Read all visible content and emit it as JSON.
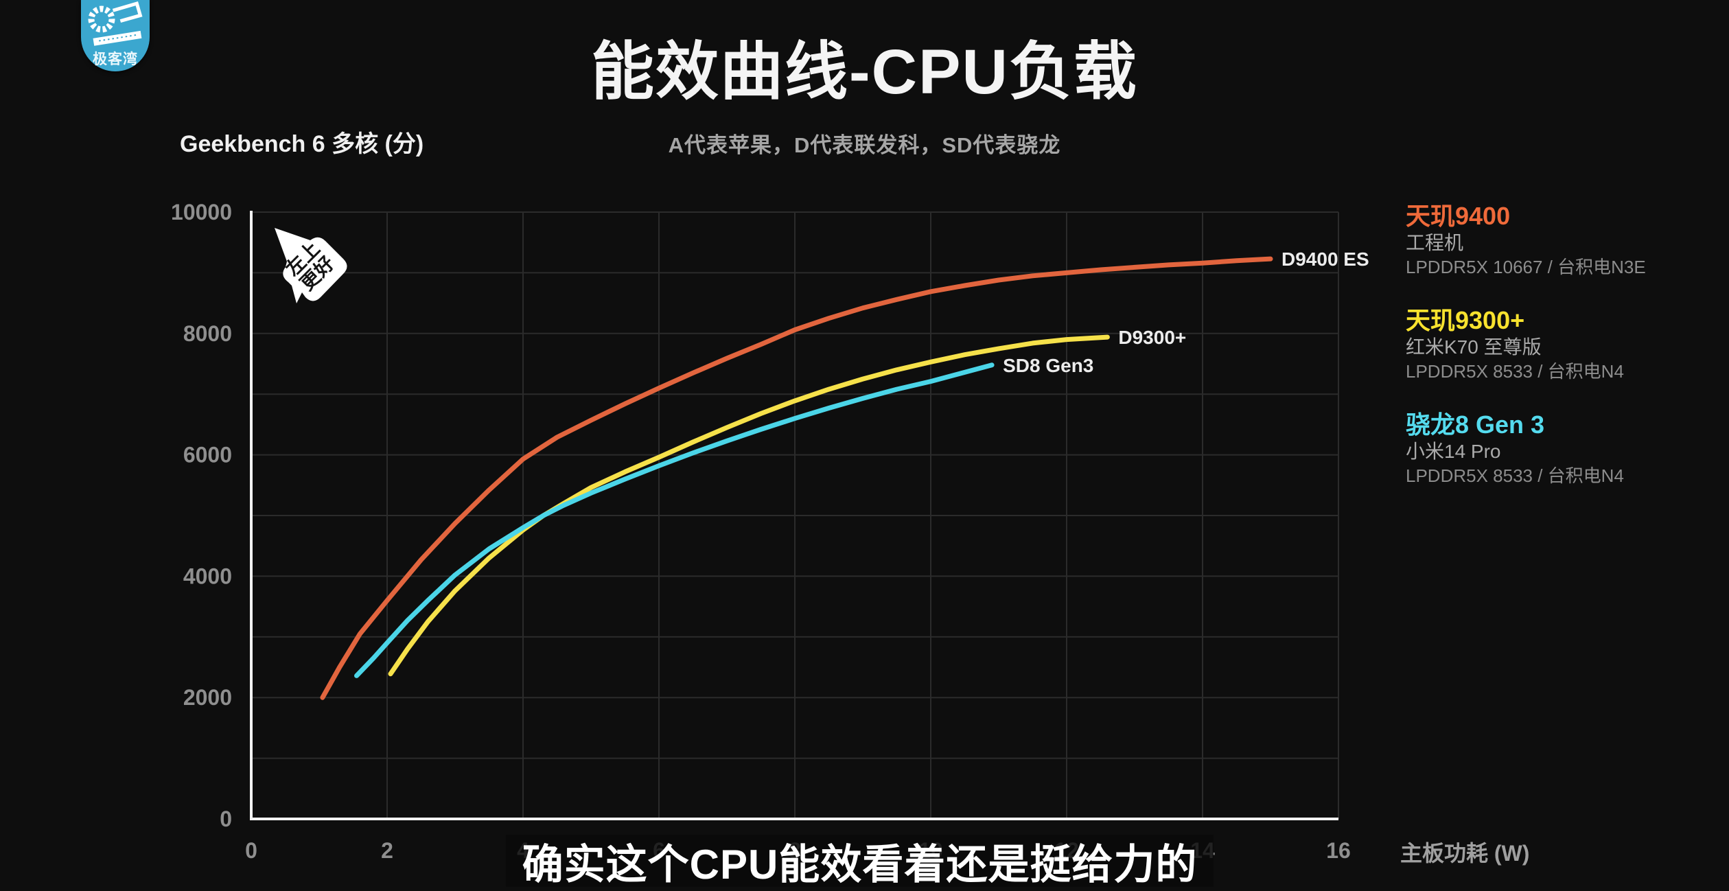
{
  "page": {
    "title": "能效曲线-CPU负载",
    "subtitle": "A代表苹果，D代表联发科，SD代表骁龙"
  },
  "logo": {
    "text": "极客湾"
  },
  "badge": {
    "line1": "左上",
    "line2": "更好"
  },
  "caption": {
    "text": "确实这个CPU能效看着还是挺给力的"
  },
  "axis_titles": {
    "y": "Geekbench 6 多核 (分)",
    "x": "主板功耗 (W)"
  },
  "colors": {
    "background": "#0e0e0e",
    "grid": "#2b2b2b",
    "axis": "#f2f2f2",
    "tick_label": "#8f8f8f",
    "curve_label": "#ececec",
    "orange": "#e2653e",
    "yellow": "#f6e14a",
    "cyan": "#4bd5e8"
  },
  "chart_data": {
    "type": "line",
    "title": "能效曲线-CPU负载",
    "xlabel": "主板功耗 (W)",
    "ylabel": "Geekbench 6 多核 (分)",
    "xlim": [
      0,
      16
    ],
    "ylim": [
      0,
      10000
    ],
    "x_ticks": [
      0,
      2,
      4,
      6,
      8,
      10,
      12,
      14,
      16
    ],
    "y_ticks": [
      0,
      2000,
      4000,
      6000,
      8000,
      10000
    ],
    "grid": {
      "x_step": 2,
      "y_step": 1000,
      "visible": true
    },
    "legend_position": "right",
    "series": [
      {
        "name": "D9400 ES",
        "color": "#e2653e",
        "points": [
          [
            1.05,
            2000
          ],
          [
            1.3,
            2500
          ],
          [
            1.6,
            3050
          ],
          [
            2,
            3600
          ],
          [
            2.5,
            4270
          ],
          [
            3,
            4870
          ],
          [
            3.5,
            5420
          ],
          [
            4,
            5930
          ],
          [
            4.5,
            6290
          ],
          [
            5,
            6570
          ],
          [
            5.5,
            6840
          ],
          [
            6,
            7100
          ],
          [
            6.5,
            7350
          ],
          [
            7,
            7590
          ],
          [
            7.5,
            7820
          ],
          [
            8,
            8060
          ],
          [
            8.5,
            8250
          ],
          [
            9,
            8420
          ],
          [
            9.5,
            8560
          ],
          [
            10,
            8690
          ],
          [
            10.5,
            8790
          ],
          [
            11,
            8880
          ],
          [
            11.5,
            8950
          ],
          [
            12,
            9000
          ],
          [
            12.5,
            9050
          ],
          [
            13,
            9090
          ],
          [
            13.5,
            9130
          ],
          [
            14,
            9160
          ],
          [
            14.5,
            9200
          ],
          [
            15,
            9230
          ]
        ]
      },
      {
        "name": "D9300+",
        "color": "#f6e14a",
        "points": [
          [
            2.05,
            2390
          ],
          [
            2.3,
            2800
          ],
          [
            2.6,
            3250
          ],
          [
            3,
            3760
          ],
          [
            3.5,
            4300
          ],
          [
            4,
            4760
          ],
          [
            4.3,
            5000
          ],
          [
            4.6,
            5200
          ],
          [
            5,
            5460
          ],
          [
            5.5,
            5720
          ],
          [
            6,
            5960
          ],
          [
            6.5,
            6210
          ],
          [
            7,
            6450
          ],
          [
            7.5,
            6680
          ],
          [
            8,
            6890
          ],
          [
            8.5,
            7080
          ],
          [
            9,
            7250
          ],
          [
            9.5,
            7400
          ],
          [
            10,
            7530
          ],
          [
            10.5,
            7650
          ],
          [
            11,
            7750
          ],
          [
            11.5,
            7840
          ],
          [
            12,
            7900
          ],
          [
            12.6,
            7940
          ]
        ]
      },
      {
        "name": "SD8 Gen3",
        "color": "#4bd5e8",
        "points": [
          [
            1.55,
            2360
          ],
          [
            1.8,
            2650
          ],
          [
            2,
            2900
          ],
          [
            2.3,
            3270
          ],
          [
            2.6,
            3600
          ],
          [
            3,
            4020
          ],
          [
            3.5,
            4450
          ],
          [
            4,
            4800
          ],
          [
            4.3,
            5000
          ],
          [
            4.6,
            5170
          ],
          [
            5,
            5370
          ],
          [
            5.5,
            5600
          ],
          [
            6,
            5820
          ],
          [
            6.5,
            6030
          ],
          [
            7,
            6230
          ],
          [
            7.5,
            6420
          ],
          [
            8,
            6600
          ],
          [
            8.5,
            6770
          ],
          [
            9,
            6930
          ],
          [
            9.5,
            7080
          ],
          [
            10,
            7210
          ],
          [
            10.4,
            7330
          ],
          [
            10.9,
            7480
          ]
        ]
      }
    ]
  },
  "legend": [
    {
      "title": "天玑9400",
      "color": "#ef6a3a",
      "device": "工程机",
      "spec": "LPDDR5X 10667 / 台积电N3E"
    },
    {
      "title": "天玑9300+",
      "color": "#f8e22e",
      "device": "红米K70 至尊版",
      "spec": "LPDDR5X 8533 / 台积电N4"
    },
    {
      "title": "骁龙8 Gen 3",
      "color": "#55dbee",
      "device": "小米14 Pro",
      "spec": "LPDDR5X 8533 / 台积电N4"
    }
  ]
}
